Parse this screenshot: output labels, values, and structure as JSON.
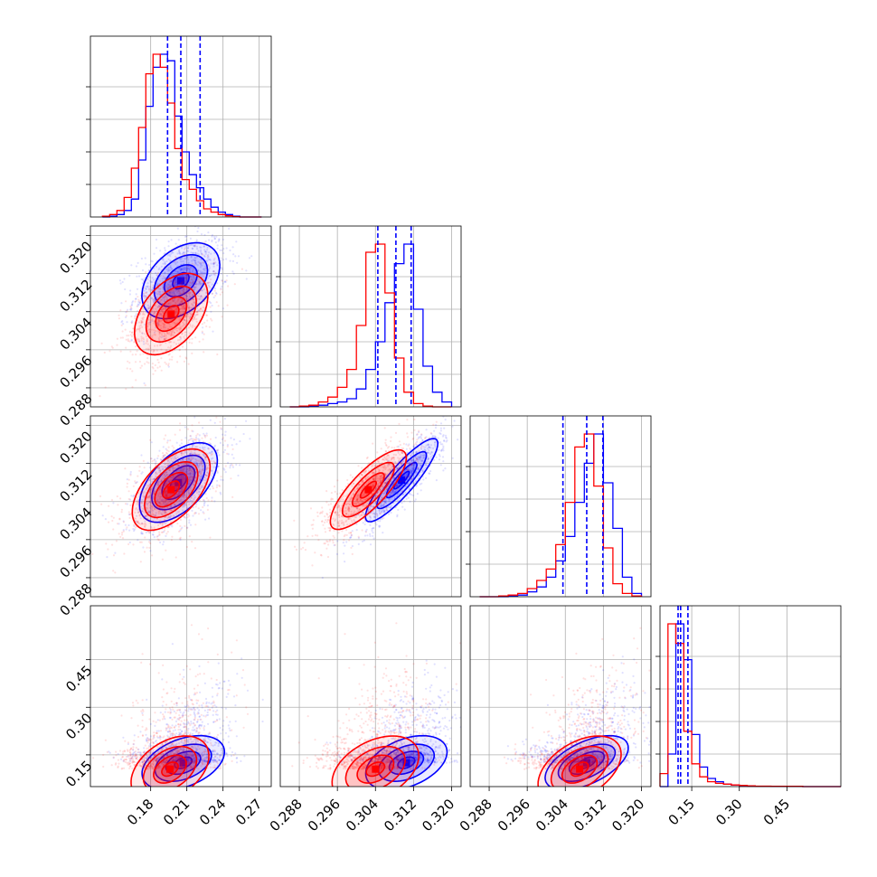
{
  "chart_data": {
    "type": "corner",
    "title": "",
    "grid": true,
    "series": [
      {
        "color": "#0000ff"
      },
      {
        "color": "#ff0000"
      }
    ],
    "quantile_lines": {
      "color": "#0000ff",
      "param0": [
        0.194,
        0.205,
        0.221
      ],
      "param1": [
        0.3045,
        0.3083,
        0.3115
      ],
      "param2": [
        0.3035,
        0.3085,
        0.3119
      ],
      "param3": [
        0.107,
        0.115,
        0.138
      ]
    },
    "params": [
      {
        "range": [
          0.13,
          0.28
        ],
        "ticks": [
          0.18,
          0.21,
          0.24,
          0.27
        ],
        "tick_labels": [
          "0.18",
          "0.21",
          "0.24",
          "0.27"
        ]
      },
      {
        "range": [
          0.284,
          0.322
        ],
        "ticks": [
          0.288,
          0.296,
          0.304,
          0.312,
          0.32
        ],
        "tick_labels": [
          "0.288",
          "0.296",
          "0.304",
          "0.312",
          "0.320"
        ]
      },
      {
        "range": [
          0.284,
          0.322
        ],
        "ticks": [
          0.288,
          0.296,
          0.304,
          0.312,
          0.32
        ],
        "tick_labels": [
          "0.288",
          "0.296",
          "0.304",
          "0.312",
          "0.320"
        ]
      },
      {
        "range": [
          0.05,
          0.62
        ],
        "ticks": [
          0.15,
          0.3,
          0.45
        ],
        "tick_labels": [
          "0.15",
          "0.30",
          "0.45"
        ]
      }
    ],
    "histograms": {
      "0": {
        "bins": [
          0.14,
          0.146,
          0.152,
          0.158,
          0.164,
          0.17,
          0.176,
          0.182,
          0.188,
          0.194,
          0.2,
          0.206,
          0.212,
          0.218,
          0.224,
          0.23,
          0.236,
          0.242,
          0.248,
          0.254,
          0.26,
          0.266,
          0.272
        ],
        "blue": [
          0,
          0.5,
          1.5,
          4,
          11,
          35,
          68,
          92,
          100,
          96,
          62,
          40,
          26,
          18,
          11,
          6,
          3,
          1.5,
          0.5,
          0,
          0,
          0
        ],
        "red": [
          0.5,
          1.5,
          4,
          12,
          30,
          55,
          88,
          100,
          92,
          70,
          42,
          23,
          17,
          10,
          5,
          3,
          1.5,
          0.7,
          0.2,
          0,
          0,
          0
        ]
      },
      "1": {
        "bins": [
          0.286,
          0.288,
          0.29,
          0.292,
          0.294,
          0.296,
          0.298,
          0.3,
          0.302,
          0.304,
          0.306,
          0.308,
          0.31,
          0.312,
          0.314,
          0.316,
          0.318,
          0.32
        ],
        "blue": [
          0,
          0,
          0.5,
          1,
          2,
          3,
          5,
          11,
          23,
          40,
          64,
          88,
          100,
          60,
          25,
          9,
          3
        ],
        "red": [
          0,
          0.5,
          1,
          3,
          6,
          12,
          23,
          50,
          95,
          100,
          70,
          30,
          9,
          2,
          0.5,
          0,
          0
        ]
      },
      "2": {
        "bins": [
          0.286,
          0.288,
          0.29,
          0.292,
          0.294,
          0.296,
          0.298,
          0.3,
          0.302,
          0.304,
          0.306,
          0.308,
          0.31,
          0.312,
          0.314,
          0.316,
          0.318,
          0.32
        ],
        "blue": [
          0,
          0,
          0,
          0.5,
          1,
          3,
          6,
          12,
          22,
          37,
          58,
          82,
          100,
          70,
          42,
          12,
          2
        ],
        "red": [
          0,
          0,
          0.5,
          1,
          2,
          5,
          10,
          17,
          32,
          58,
          92,
          100,
          68,
          30,
          8,
          2,
          0.5
        ]
      },
      "3": {
        "bins": [
          0.05,
          0.075,
          0.1,
          0.125,
          0.15,
          0.175,
          0.2,
          0.225,
          0.25,
          0.275,
          0.3,
          0.325,
          0.35,
          0.4,
          0.5,
          0.62
        ],
        "blue": [
          0,
          20,
          100,
          78,
          32,
          12,
          5,
          3,
          1.5,
          1,
          0.5,
          0.3,
          0.2,
          0.1,
          0
        ],
        "red": [
          8,
          100,
          88,
          34,
          14,
          6,
          3,
          2,
          1.5,
          1,
          0.7,
          0.5,
          0.3,
          0.2,
          0
        ]
      }
    },
    "pairs": [
      {
        "x": 0,
        "y": 1,
        "blue": {
          "mean": [
            0.205,
            0.3105
          ],
          "sd": [
            0.017,
            0.0042
          ],
          "rho": 0.4
        },
        "red": {
          "mean": [
            0.197,
            0.3035
          ],
          "sd": [
            0.016,
            0.0045
          ],
          "rho": 0.45
        }
      },
      {
        "x": 0,
        "y": 2,
        "blue": {
          "mean": [
            0.203,
            0.308
          ],
          "sd": [
            0.017,
            0.0044
          ],
          "rho": 0.55
        },
        "red": {
          "mean": [
            0.197,
            0.3065
          ],
          "sd": [
            0.017,
            0.0045
          ],
          "rho": 0.55
        }
      },
      {
        "x": 1,
        "y": 2,
        "blue": {
          "mean": [
            0.3095,
            0.3085
          ],
          "sd": [
            0.004,
            0.0046
          ],
          "rho": 0.88
        },
        "red": {
          "mean": [
            0.3025,
            0.3065
          ],
          "sd": [
            0.0042,
            0.0044
          ],
          "rho": 0.8
        }
      },
      {
        "x": 0,
        "y": 3,
        "blue": {
          "mean": [
            0.207,
            0.125
          ],
          "sd": [
            0.018,
            0.045
          ],
          "rho": 0.4
        },
        "red": {
          "mean": [
            0.196,
            0.105
          ],
          "sd": [
            0.017,
            0.055
          ],
          "rho": 0.4
        }
      },
      {
        "x": 1,
        "y": 3,
        "blue": {
          "mean": [
            0.3105,
            0.125
          ],
          "sd": [
            0.0045,
            0.045
          ],
          "rho": 0.4
        },
        "red": {
          "mean": [
            0.304,
            0.105
          ],
          "sd": [
            0.0048,
            0.055
          ],
          "rho": 0.4
        }
      },
      {
        "x": 2,
        "y": 3,
        "blue": {
          "mean": [
            0.3085,
            0.125
          ],
          "sd": [
            0.0046,
            0.045
          ],
          "rho": 0.55
        },
        "red": {
          "mean": [
            0.307,
            0.105
          ],
          "sd": [
            0.0046,
            0.055
          ],
          "rho": 0.45
        }
      }
    ]
  }
}
